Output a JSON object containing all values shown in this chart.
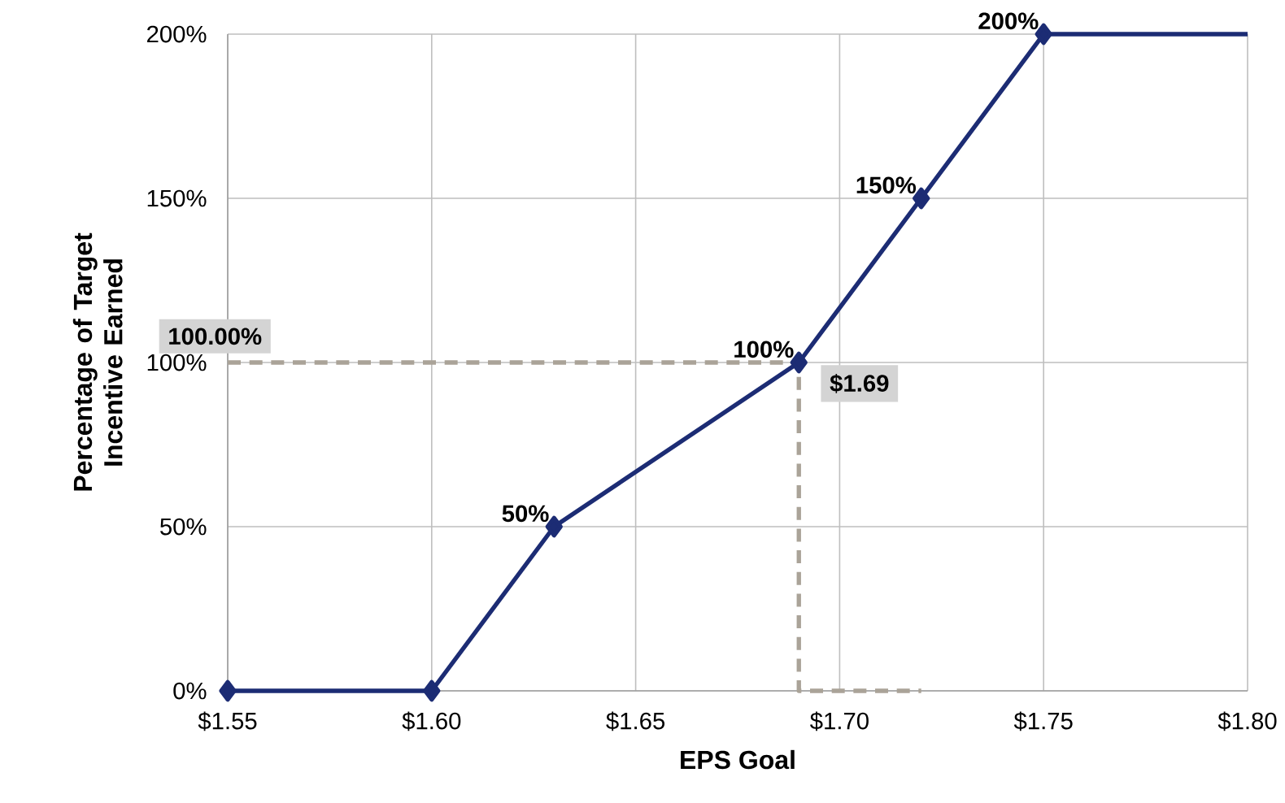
{
  "chart_data": {
    "type": "line",
    "xlabel": "EPS Goal",
    "ylabel": "Percentage of Target Incentive Earned",
    "xlim": [
      1.55,
      1.8
    ],
    "ylim": [
      0,
      200
    ],
    "xticks": [
      {
        "value": 1.55,
        "label": "$1.55"
      },
      {
        "value": 1.6,
        "label": "$1.60"
      },
      {
        "value": 1.65,
        "label": "$1.65"
      },
      {
        "value": 1.7,
        "label": "$1.70"
      },
      {
        "value": 1.75,
        "label": "$1.75"
      },
      {
        "value": 1.8,
        "label": "$1.80"
      }
    ],
    "yticks": [
      {
        "value": 0,
        "label": "0%"
      },
      {
        "value": 50,
        "label": "50%"
      },
      {
        "value": 100,
        "label": "100%"
      },
      {
        "value": 150,
        "label": "150%"
      },
      {
        "value": 200,
        "label": "200%"
      }
    ],
    "grid": true,
    "series": [
      {
        "color": "#aaa398",
        "line_style": "dashed",
        "marker": "none",
        "x": [
          1.55,
          1.69,
          1.69,
          1.72
        ],
        "values": [
          100,
          100,
          0,
          0
        ]
      },
      {
        "color": "#1c2c74",
        "line_style": "solid",
        "x": [
          1.75,
          1.8
        ],
        "values": [
          200,
          200
        ]
      },
      {
        "color": "#1c2c74",
        "line_style": "solid",
        "marker": "diamond",
        "x": [
          1.55,
          1.6,
          1.63,
          1.69,
          1.72,
          1.75
        ],
        "values": [
          0,
          0,
          50,
          100,
          150,
          200
        ],
        "value_labels": [
          null,
          null,
          "50%",
          "100%",
          "150%",
          "200%"
        ]
      }
    ],
    "annotations": [
      {
        "text": "100.00%",
        "x": 1.55,
        "y": 100
      },
      {
        "text": "$1.69",
        "x": 1.69,
        "y": 100
      }
    ]
  }
}
